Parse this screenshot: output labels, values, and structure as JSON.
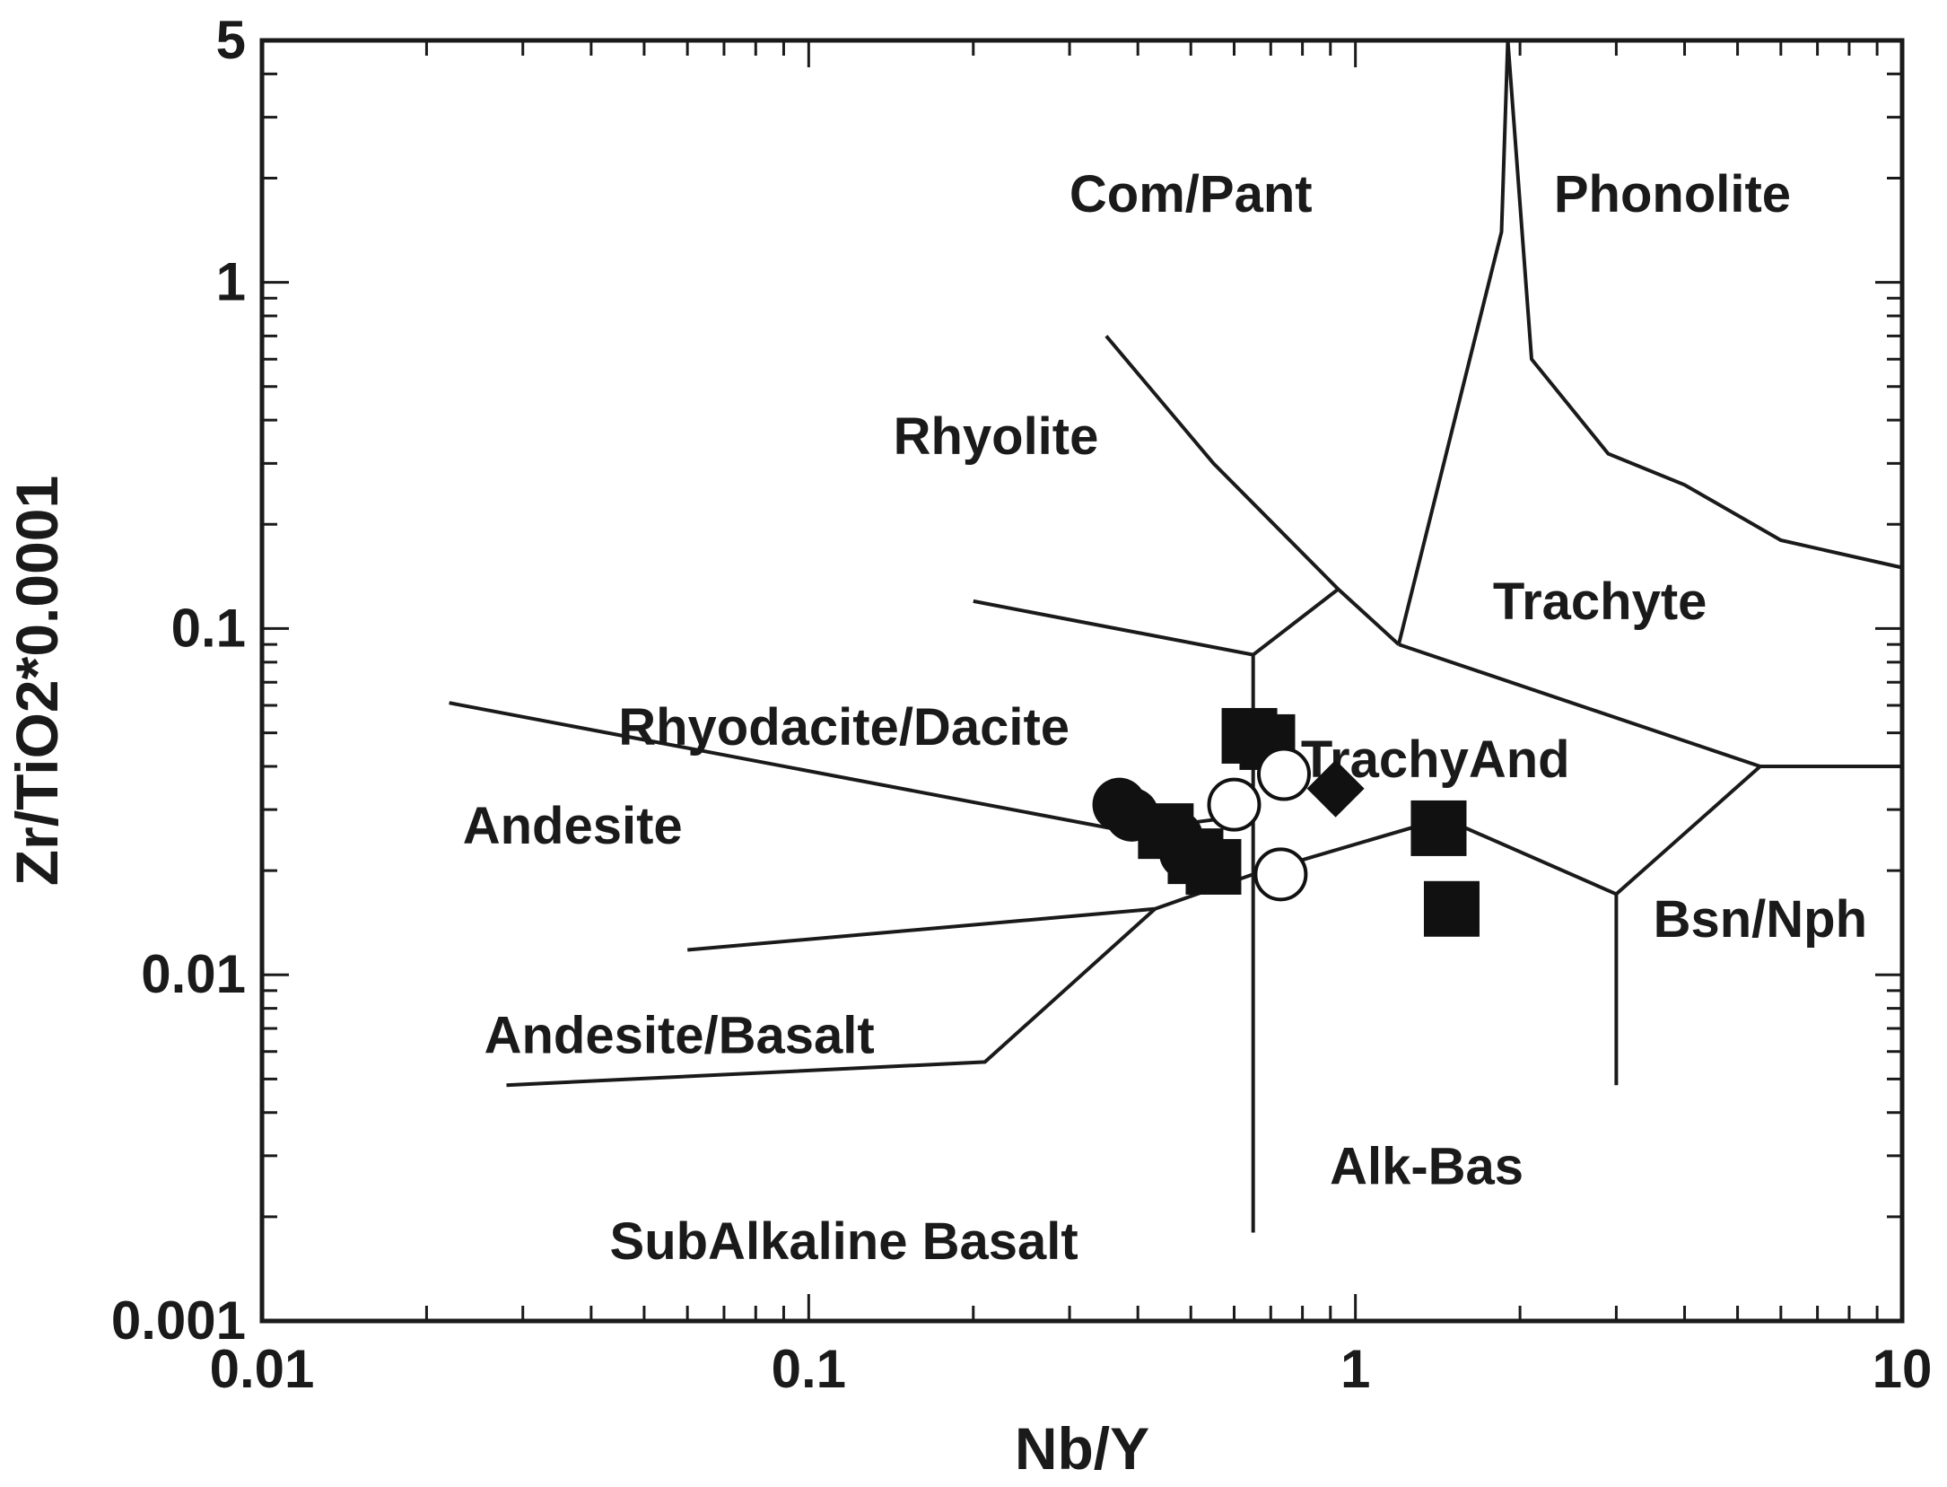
{
  "chart_data": {
    "type": "scatter",
    "title": "",
    "xlabel": "Nb/Y",
    "ylabel": "Zr/TiO2*0.0001",
    "xscale": "log",
    "yscale": "log",
    "xlim": [
      0.01,
      10
    ],
    "ylim": [
      0.001,
      5
    ],
    "grid": false,
    "x_ticks": [
      {
        "value": 0.01,
        "label": "0.01"
      },
      {
        "value": 0.1,
        "label": "0.1"
      },
      {
        "value": 1,
        "label": "1"
      },
      {
        "value": 10,
        "label": "10"
      }
    ],
    "y_ticks": [
      {
        "value": 0.001,
        "label": "0.001"
      },
      {
        "value": 0.01,
        "label": "0.01"
      },
      {
        "value": 0.1,
        "label": "0.1"
      },
      {
        "value": 1,
        "label": "1"
      },
      {
        "value": 5,
        "label": "5"
      }
    ],
    "field_labels": [
      {
        "text": "Com/Pant",
        "x": 0.5,
        "y": 1.8
      },
      {
        "text": "Phonolite",
        "x": 3.8,
        "y": 1.8
      },
      {
        "text": "Rhyolite",
        "x": 0.22,
        "y": 0.36
      },
      {
        "text": "Trachyte",
        "x": 2.8,
        "y": 0.12
      },
      {
        "text": "Rhyodacite/Dacite",
        "x": 0.116,
        "y": 0.052
      },
      {
        "text": "TrachyAnd",
        "x": 1.4,
        "y": 0.042
      },
      {
        "text": "Andesite",
        "x": 0.037,
        "y": 0.027
      },
      {
        "text": "Bsn/Nph",
        "x": 5.5,
        "y": 0.0145
      },
      {
        "text": "Andesite/Basalt",
        "x": 0.058,
        "y": 0.0067
      },
      {
        "text": "Alk-Bas",
        "x": 1.35,
        "y": 0.0028
      },
      {
        "text": "SubAlkaline Basalt",
        "x": 0.116,
        "y": 0.0017
      }
    ],
    "boundaries": [
      [
        [
          1.9,
          5
        ],
        [
          2.1,
          0.6
        ],
        [
          2.9,
          0.32
        ],
        [
          4,
          0.26
        ],
        [
          6,
          0.18
        ],
        [
          10,
          0.15
        ]
      ],
      [
        [
          1.2,
          0.09
        ],
        [
          1.85,
          1.4
        ],
        [
          1.9,
          5
        ]
      ],
      [
        [
          0.35,
          0.7
        ],
        [
          0.55,
          0.3
        ],
        [
          0.93,
          0.13
        ],
        [
          1.2,
          0.09
        ]
      ],
      [
        [
          1.2,
          0.09
        ],
        [
          5.5,
          0.04
        ],
        [
          10,
          0.04
        ]
      ],
      [
        [
          0.2,
          0.12
        ],
        [
          0.65,
          0.084
        ],
        [
          0.93,
          0.13
        ]
      ],
      [
        [
          0.65,
          0.0018
        ],
        [
          0.65,
          0.084
        ]
      ],
      [
        [
          0.022,
          0.061
        ],
        [
          0.38,
          0.026
        ],
        [
          0.65,
          0.029
        ]
      ],
      [
        [
          0.06,
          0.0118
        ],
        [
          0.43,
          0.0155
        ],
        [
          0.65,
          0.0195
        ],
        [
          1.45,
          0.0283
        ],
        [
          3,
          0.0171
        ],
        [
          5.5,
          0.04
        ]
      ],
      [
        [
          3,
          0.0171
        ],
        [
          3,
          0.0048
        ]
      ],
      [
        [
          0.028,
          0.0048
        ],
        [
          0.21,
          0.0056
        ],
        [
          0.43,
          0.0155
        ]
      ]
    ],
    "series": [
      {
        "marker": "filled-square",
        "color": "#111111",
        "points": [
          {
            "x": 0.64,
            "y": 0.049
          },
          {
            "x": 0.69,
            "y": 0.047
          },
          {
            "x": 0.45,
            "y": 0.026
          },
          {
            "x": 0.51,
            "y": 0.022
          },
          {
            "x": 0.55,
            "y": 0.0205
          },
          {
            "x": 1.42,
            "y": 0.0265
          },
          {
            "x": 1.5,
            "y": 0.0155
          }
        ]
      },
      {
        "marker": "filled-circle",
        "color": "#111111",
        "points": [
          {
            "x": 0.37,
            "y": 0.031
          },
          {
            "x": 0.39,
            "y": 0.029
          },
          {
            "x": 0.47,
            "y": 0.025
          },
          {
            "x": 0.49,
            "y": 0.0225
          }
        ]
      },
      {
        "marker": "open-circle",
        "color": "#111111",
        "points": [
          {
            "x": 0.6,
            "y": 0.031
          },
          {
            "x": 0.74,
            "y": 0.038
          },
          {
            "x": 0.73,
            "y": 0.0195
          }
        ]
      },
      {
        "marker": "filled-diamond",
        "color": "#111111",
        "points": [
          {
            "x": 0.92,
            "y": 0.0345
          }
        ]
      }
    ]
  }
}
